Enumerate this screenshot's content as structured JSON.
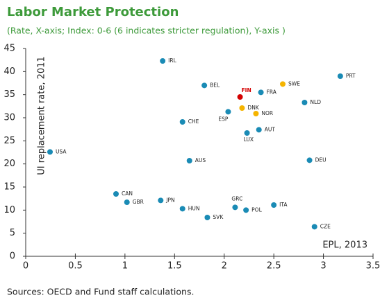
{
  "chart_data": {
    "type": "scatter",
    "title": "Labor Market Protection",
    "subtitle": "(Rate, X-axis; Index: 0-6 (6 indicates stricter regulation), Y-axis )",
    "x_label": "EPL, 2013",
    "y_label": "UI replacement rate, 2011",
    "source": "Sources: OECD and Fund staff calculations.",
    "xlim": [
      0,
      3.5
    ],
    "xticks": [
      0,
      0.5,
      1,
      1.5,
      2,
      2.5,
      3,
      3.5
    ],
    "ylim": [
      0,
      45
    ],
    "yticks": [
      0,
      5,
      10,
      15,
      20,
      25,
      30,
      35,
      40,
      45
    ],
    "grid": false,
    "points": [
      {
        "label": "IRL",
        "x": 1.38,
        "y": 42.3,
        "color": "#1a8bb5"
      },
      {
        "label": "BEL",
        "x": 1.8,
        "y": 37.0,
        "color": "#1a8bb5"
      },
      {
        "label": "FIN",
        "x": 2.16,
        "y": 34.5,
        "color": "#d40000",
        "label_color": "#d40000"
      },
      {
        "label": "FRA",
        "x": 2.37,
        "y": 35.5,
        "color": "#1a8bb5"
      },
      {
        "label": "SWE",
        "x": 2.59,
        "y": 37.3,
        "color": "#f5b400"
      },
      {
        "label": "PRT",
        "x": 3.17,
        "y": 39.0,
        "color": "#1a8bb5"
      },
      {
        "label": "NLD",
        "x": 2.81,
        "y": 33.3,
        "color": "#1a8bb5"
      },
      {
        "label": "DNK",
        "x": 2.18,
        "y": 32.1,
        "color": "#f5b400"
      },
      {
        "label": "ESP",
        "x": 2.04,
        "y": 31.3,
        "color": "#1a8bb5"
      },
      {
        "label": "NOR",
        "x": 2.32,
        "y": 30.9,
        "color": "#f5b400"
      },
      {
        "label": "CHE",
        "x": 1.58,
        "y": 29.1,
        "color": "#1a8bb5"
      },
      {
        "label": "AUT",
        "x": 2.35,
        "y": 27.4,
        "color": "#1a8bb5"
      },
      {
        "label": "LUX",
        "x": 2.23,
        "y": 26.7,
        "color": "#1a8bb5"
      },
      {
        "label": "USA",
        "x": 0.245,
        "y": 22.6,
        "color": "#1a8bb5"
      },
      {
        "label": "AUS",
        "x": 1.65,
        "y": 20.7,
        "color": "#1a8bb5"
      },
      {
        "label": "DEU",
        "x": 2.86,
        "y": 20.8,
        "color": "#1a8bb5"
      },
      {
        "label": "CAN",
        "x": 0.91,
        "y": 13.5,
        "color": "#1a8bb5"
      },
      {
        "label": "GBR",
        "x": 1.02,
        "y": 11.7,
        "color": "#1a8bb5"
      },
      {
        "label": "JPN",
        "x": 1.36,
        "y": 12.1,
        "color": "#1a8bb5"
      },
      {
        "label": "HUN",
        "x": 1.58,
        "y": 10.3,
        "color": "#1a8bb5"
      },
      {
        "label": "GRC",
        "x": 2.11,
        "y": 10.6,
        "color": "#1a8bb5"
      },
      {
        "label": "POL",
        "x": 2.22,
        "y": 10.0,
        "color": "#1a8bb5"
      },
      {
        "label": "ITA",
        "x": 2.5,
        "y": 11.1,
        "color": "#1a8bb5"
      },
      {
        "label": "SVK",
        "x": 1.83,
        "y": 8.4,
        "color": "#1a8bb5"
      },
      {
        "label": "CZE",
        "x": 2.91,
        "y": 6.4,
        "color": "#1a8bb5"
      }
    ]
  }
}
